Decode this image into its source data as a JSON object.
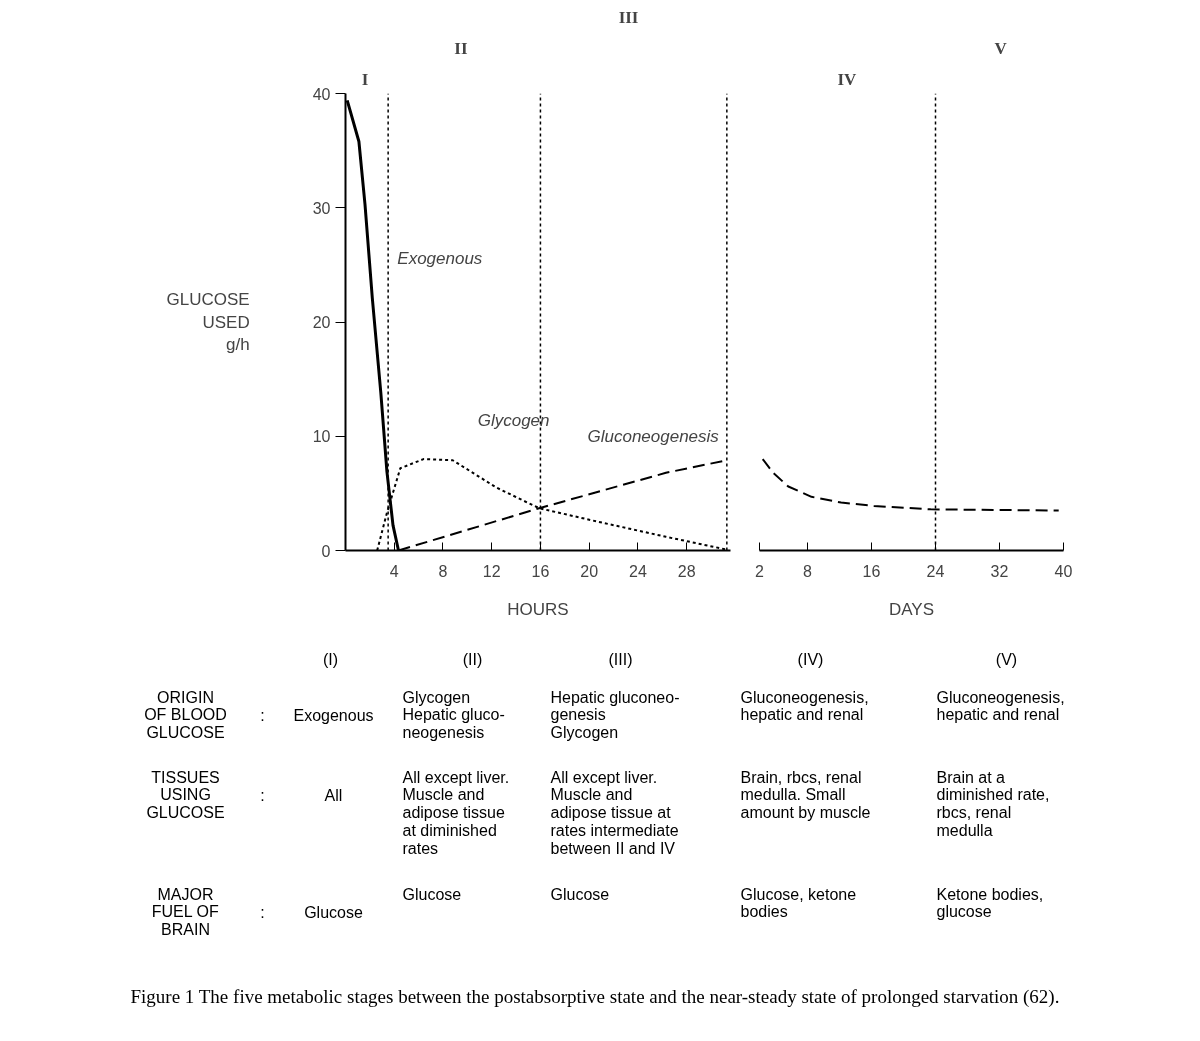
{
  "chart_data": [
    {
      "type": "line",
      "xlabel": "HOURS",
      "ylabel": "GLUCOSE\nUSED\ng/h",
      "xlim": [
        0,
        31.6
      ],
      "xticks": [
        4,
        8,
        12,
        16,
        20,
        24,
        28
      ],
      "ylim": [
        0,
        40
      ],
      "yticks": [
        0,
        10,
        20,
        30,
        40
      ],
      "grid": false,
      "legend": false,
      "marker": "none",
      "series": [
        {
          "name": "Exogenous",
          "color": "#000000",
          "line_style": "solid",
          "x": [
            0.14,
            1.1,
            1.6,
            2.2,
            2.9,
            3.4,
            3.9,
            4.35
          ],
          "values": [
            39.4,
            35.8,
            30.3,
            22.1,
            13.8,
            6.9,
            2.2,
            0
          ]
        },
        {
          "name": "Glycogen",
          "color": "#000000",
          "line_style": "dotted",
          "x": [
            2.6,
            3.4,
            4.5,
            6.4,
            8.8,
            12.4,
            15.9,
            20.8,
            26.3,
            31.2
          ],
          "values": [
            0,
            3.3,
            7.2,
            8.0,
            7.9,
            5.5,
            3.7,
            2.5,
            1.2,
            0.1
          ]
        },
        {
          "name": "Gluconeogenesis",
          "color": "#000000",
          "line_style": "dashed",
          "x": [
            4.35,
            15.9,
            26.3,
            31.3
          ],
          "values": [
            0,
            3.7,
            6.8,
            7.9
          ]
        }
      ],
      "ref_lines": [
        {
          "axis": "x",
          "value": 3.5,
          "line_style": "dotted"
        },
        {
          "axis": "x",
          "value": 16,
          "line_style": "dotted"
        },
        {
          "axis": "x",
          "value": 31.3,
          "line_style": "dotted"
        }
      ],
      "annotations": [
        "I",
        "II",
        "III"
      ]
    },
    {
      "type": "line",
      "xlabel": "DAYS",
      "xlim": [
        2,
        40
      ],
      "xticks": [
        2,
        8,
        16,
        24,
        32,
        40
      ],
      "ylim": [
        0,
        40
      ],
      "tick_labels": "x",
      "grid": false,
      "legend": false,
      "marker": "none",
      "series": [
        {
          "color": "#000000",
          "line_style": "dashed",
          "x": [
            2.4,
            3.7,
            5.6,
            8.5,
            12.2,
            16.3,
            23.4,
            39.4
          ],
          "values": [
            8.0,
            6.8,
            5.6,
            4.7,
            4.2,
            3.9,
            3.6,
            3.5
          ]
        }
      ],
      "ref_lines": [
        {
          "axis": "x",
          "value": 24,
          "line_style": "dotted"
        }
      ],
      "annotations": [
        "IV",
        "V"
      ]
    },
    {
      "type": "other",
      "annotations": [
        "(I)",
        "(II)",
        "(III)",
        "(IV)",
        "(V)",
        "ORIGIN\nOF BLOOD\nGLUCOSE",
        ":",
        "Exogenous",
        "Glycogen\nHepatic gluco-\nneogenesis",
        "Hepatic gluconeo-\ngenesis\nGlycogen",
        "Gluconeogenesis,\nhepatic and renal",
        "Gluconeogenesis,\nhepatic and renal",
        "TISSUES\nUSING\nGLUCOSE",
        ":",
        "All",
        "All except liver.\nMuscle and\nadipose tissue\nat diminished\nrates",
        "All except liver.\nMuscle and\nadipose tissue at\nrates intermediate\nbetween II and IV",
        "Brain, rbcs, renal\nmedulla. Small\namount by muscle",
        "Brain at a\ndiminished rate,\nrbcs, renal\nmedulla",
        "MAJOR\nFUEL OF\nBRAIN",
        ":",
        "Glucose",
        "Glucose",
        "Glucose",
        "Glucose, ketone\nbodies",
        "Ketone bodies,\nglucose",
        "Figure 1   The five metabolic stages between the postabsorptive state and the near-steady state of prolonged starvation (62)."
      ]
    }
  ]
}
